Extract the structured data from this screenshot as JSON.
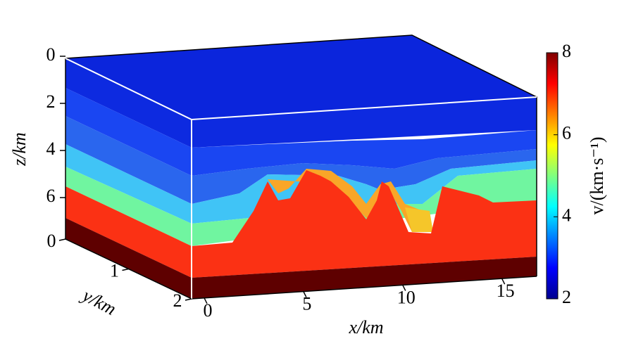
{
  "chart_data": {
    "type": "volume",
    "xlabel": "x/km",
    "ylabel": "y/km",
    "zlabel": "z/km",
    "xlim": [
      0,
      17
    ],
    "xticks": [
      0,
      5,
      10,
      15
    ],
    "ylim": [
      0,
      2
    ],
    "yticks": [
      0,
      1,
      2
    ],
    "zlim": [
      0,
      8
    ],
    "zticks": [
      0,
      2,
      4,
      6
    ],
    "colorbar": {
      "label": "v/(km·s⁻¹)",
      "colormap": "jet",
      "clim": [
        2,
        8
      ],
      "ticks": [
        2,
        4,
        6,
        8
      ]
    }
  }
}
